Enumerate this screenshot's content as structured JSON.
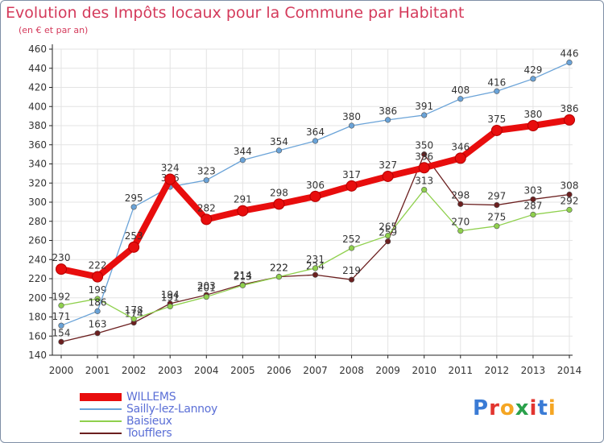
{
  "header": {
    "title": "Evolution des Impôts locaux pour la Commune par Habitant",
    "subtitle": "(en € et par an)"
  },
  "logo": {
    "text": "Proxiti",
    "colors": [
      "#3a7bd5",
      "#e2352f",
      "#f5a623",
      "#2aa14b",
      "#e2352f",
      "#3a7bd5",
      "#f5a623"
    ]
  },
  "chart_data": {
    "type": "line",
    "x": [
      2000,
      2001,
      2002,
      2003,
      2004,
      2005,
      2006,
      2007,
      2008,
      2009,
      2010,
      2011,
      2012,
      2013,
      2014
    ],
    "ylim": [
      140,
      460
    ],
    "yticks": [
      140,
      160,
      180,
      200,
      220,
      240,
      260,
      280,
      300,
      320,
      340,
      360,
      380,
      400,
      420,
      440,
      460
    ],
    "grid": true,
    "legend_position": "bottom-left",
    "series": [
      {
        "name": "Toufflers",
        "color": "#6b1f1f",
        "values": [
          154,
          163,
          174,
          194,
          203,
          214,
          222,
          224,
          219,
          259,
          350,
          298,
          297,
          303,
          308
        ],
        "labels": [
          "154",
          "163",
          "174",
          "194",
          "203",
          "214",
          "222",
          "224",
          "219",
          "259",
          "350",
          "298",
          "297",
          "303",
          "308"
        ]
      },
      {
        "name": "Baisieux",
        "color": "#8fd04d",
        "values": [
          192,
          199,
          178,
          191,
          201,
          213,
          222,
          231,
          252,
          265,
          313,
          270,
          275,
          287,
          292
        ],
        "labels": [
          "192",
          "199",
          "178",
          "191",
          "201",
          "213",
          "222",
          "231",
          "252",
          "265",
          "313",
          "270",
          "275",
          "287",
          "292"
        ]
      },
      {
        "name": "Sailly-lez-Lannoy",
        "color": "#6aa3d8",
        "values": [
          171,
          186,
          295,
          316,
          323,
          344,
          354,
          364,
          380,
          386,
          391,
          408,
          416,
          429,
          446
        ],
        "labels": [
          "171",
          "186",
          "295",
          "316",
          "323",
          "344",
          "354",
          "364",
          "380",
          "386",
          "391",
          "408",
          "416",
          "429",
          "446"
        ]
      },
      {
        "name": "WILLEMS",
        "color": "#e80d0d",
        "values": [
          230,
          222,
          253,
          324,
          282,
          291,
          298,
          306,
          317,
          327,
          336,
          346,
          375,
          380,
          386
        ],
        "labels": [
          "230",
          "222",
          "253",
          "324",
          "282",
          "291",
          "298",
          "306",
          "317",
          "327",
          "336",
          "346",
          "375",
          "380",
          "386"
        ]
      }
    ]
  }
}
